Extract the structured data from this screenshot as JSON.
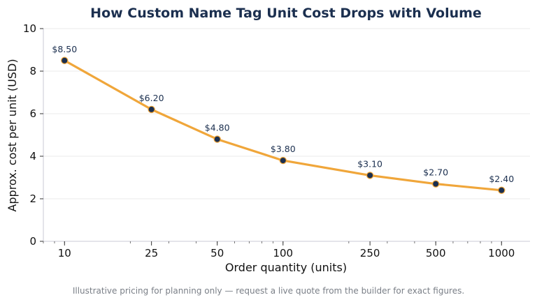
{
  "chart_data": {
    "type": "line",
    "title": "How Custom Name Tag Unit Cost Drops with Volume",
    "xlabel": "Order quantity (units)",
    "ylabel": "Approx. cost per unit (USD)",
    "x_scale": "log",
    "x": [
      10,
      25,
      50,
      100,
      250,
      500,
      1000
    ],
    "x_tick_labels": [
      "10",
      "25",
      "50",
      "100",
      "250",
      "500",
      "1000"
    ],
    "xlim": [
      8,
      1350
    ],
    "ylim": [
      0,
      10
    ],
    "y_ticks": [
      0,
      2,
      4,
      6,
      8,
      10
    ],
    "grid": "horizontal",
    "series": [
      {
        "values": [
          8.5,
          6.2,
          4.8,
          3.8,
          3.1,
          2.7,
          2.4
        ],
        "data_labels": [
          "$8.50",
          "$6.20",
          "$4.80",
          "$3.80",
          "$3.10",
          "$2.70",
          "$2.40"
        ]
      }
    ],
    "colors": {
      "line": "#f0a63a",
      "marker": "#1b2f4f",
      "title": "#1b2f4f",
      "grid": "#ebebeb",
      "axis": "#c8c8d4"
    },
    "footnote": "Illustrative pricing for planning only — request a live quote from the builder for exact figures."
  }
}
